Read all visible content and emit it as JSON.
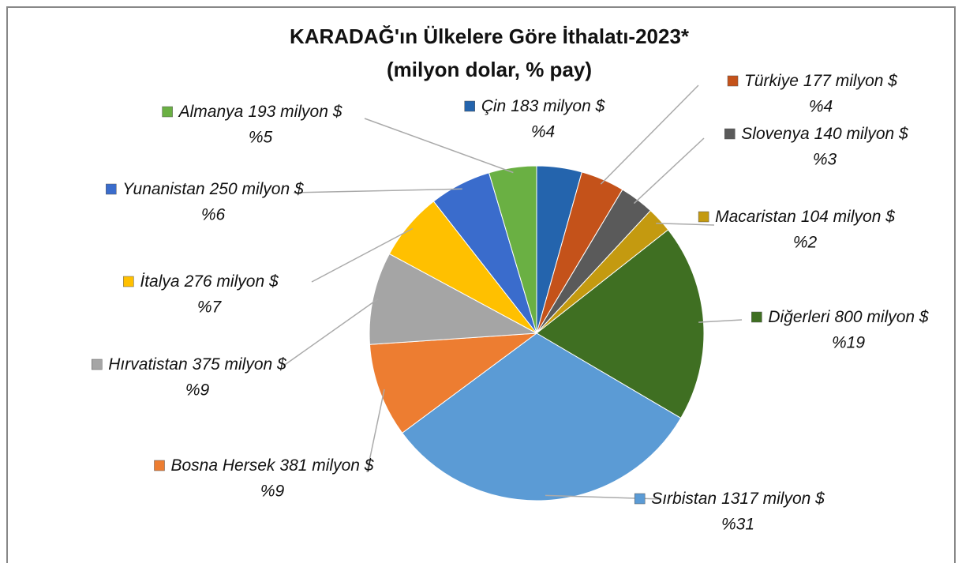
{
  "chart_data": {
    "type": "pie",
    "title": "KARADAĞ'ın Ülkelere Göre İthalatı-2023*",
    "subtitle": "(milyon dolar, % pay)",
    "categories": [
      "Çin",
      "Türkiye",
      "Slovenya",
      "Macaristan",
      "Diğerleri",
      "Sırbistan",
      "Bosna Hersek",
      "Hırvatistan",
      "İtalya",
      "Yunanistan",
      "Almanya"
    ],
    "values": [
      183,
      177,
      140,
      104,
      800,
      1317,
      381,
      375,
      276,
      250,
      193
    ],
    "value_labels": [
      "183 milyon $",
      "177 milyon $",
      "140 milyon $",
      "104 milyon $",
      "800 milyon $",
      "1317 milyon $",
      "381 milyon $",
      "375 milyon $",
      "276 milyon $",
      "250 milyon $",
      "193 milyon $"
    ],
    "percent_labels": [
      "%4",
      "%4",
      "%3",
      "%2",
      "%19",
      "%31",
      "%9",
      "%9",
      "%7",
      "%6",
      "%5"
    ],
    "colors": [
      "#2464ad",
      "#c4521a",
      "#5a5a5a",
      "#c49a10",
      "#3f6f22",
      "#5b9bd5",
      "#ed7d31",
      "#a5a5a5",
      "#ffc000",
      "#3a6ccc",
      "#6ab043"
    ]
  }
}
